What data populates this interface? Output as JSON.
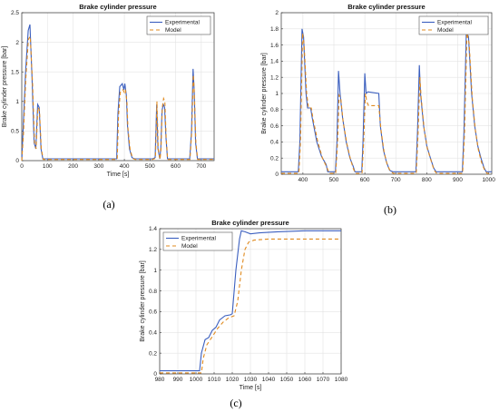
{
  "captions": [
    "(a)",
    "(b)",
    "(c)"
  ],
  "chart_data": [
    {
      "type": "line",
      "title": "Brake cylinder pressure",
      "xlabel": "Time [s]",
      "ylabel": "Brake cylinder pressure [bar]",
      "xlim": [
        0,
        750
      ],
      "ylim": [
        0,
        2.5
      ],
      "xticks": [
        "0",
        "100",
        "200",
        "300",
        "400",
        "500",
        "600",
        "700"
      ],
      "yticks": [
        "0",
        "0.5",
        "1",
        "1.5",
        "2",
        "2.5"
      ],
      "grid": true,
      "legend_position": "top-right",
      "series": [
        {
          "name": "Experimental",
          "color": "#3b5fbf",
          "dash": "",
          "points": [
            [
              0,
              0
            ],
            [
              5,
              0.5
            ],
            [
              15,
              1.5
            ],
            [
              25,
              2.2
            ],
            [
              32,
              2.3
            ],
            [
              40,
              1.4
            ],
            [
              48,
              0.3
            ],
            [
              55,
              0.2
            ],
            [
              62,
              0.95
            ],
            [
              68,
              0.9
            ],
            [
              75,
              0.2
            ],
            [
              82,
              0.03
            ],
            [
              100,
              0.03
            ],
            [
              370,
              0.03
            ],
            [
              375,
              0.8
            ],
            [
              382,
              1.25
            ],
            [
              392,
              1.3
            ],
            [
              398,
              1.2
            ],
            [
              402,
              1.3
            ],
            [
              408,
              1.1
            ],
            [
              412,
              0.6
            ],
            [
              420,
              0.2
            ],
            [
              430,
              0.05
            ],
            [
              440,
              0.03
            ],
            [
              510,
              0.03
            ],
            [
              520,
              0.05
            ],
            [
              526,
              0.95
            ],
            [
              531,
              0.2
            ],
            [
              538,
              0.03
            ],
            [
              542,
              0.2
            ],
            [
              547,
              0.85
            ],
            [
              552,
              0.95
            ],
            [
              557,
              0.9
            ],
            [
              562,
              0.4
            ],
            [
              568,
              0.03
            ],
            [
              655,
              0.03
            ],
            [
              662,
              0.5
            ],
            [
              668,
              1.55
            ],
            [
              672,
              1.2
            ],
            [
              678,
              0.3
            ],
            [
              685,
              0.03
            ],
            [
              750,
              0.03
            ]
          ]
        },
        {
          "name": "Model",
          "color": "#e08a1e",
          "dash": "4,3",
          "points": [
            [
              0,
              0
            ],
            [
              6,
              0.4
            ],
            [
              16,
              1.4
            ],
            [
              26,
              2.05
            ],
            [
              33,
              2.1
            ],
            [
              42,
              1.3
            ],
            [
              50,
              0.3
            ],
            [
              56,
              0.2
            ],
            [
              63,
              0.9
            ],
            [
              69,
              0.85
            ],
            [
              76,
              0.2
            ],
            [
              84,
              0.02
            ],
            [
              100,
              0.02
            ],
            [
              372,
              0.02
            ],
            [
              377,
              0.75
            ],
            [
              384,
              1.15
            ],
            [
              394,
              1.2
            ],
            [
              400,
              1.15
            ],
            [
              404,
              1.2
            ],
            [
              410,
              1.0
            ],
            [
              414,
              0.55
            ],
            [
              422,
              0.2
            ],
            [
              432,
              0.04
            ],
            [
              442,
              0.02
            ],
            [
              510,
              0.02
            ],
            [
              521,
              0.04
            ],
            [
              527,
              1.0
            ],
            [
              532,
              0.2
            ],
            [
              539,
              0.02
            ],
            [
              543,
              0.2
            ],
            [
              548,
              0.9
            ],
            [
              553,
              1.05
            ],
            [
              558,
              1.0
            ],
            [
              563,
              0.4
            ],
            [
              569,
              0.02
            ],
            [
              656,
              0.02
            ],
            [
              663,
              0.5
            ],
            [
              669,
              1.45
            ],
            [
              673,
              1.15
            ],
            [
              679,
              0.3
            ],
            [
              686,
              0.02
            ],
            [
              750,
              0.02
            ]
          ]
        }
      ]
    },
    {
      "type": "line",
      "title": "Brake cylinder pressure",
      "xlabel": "",
      "ylabel": "Brake cylinder pressure [bar]",
      "xlim": [
        330,
        1010
      ],
      "ylim": [
        0,
        2
      ],
      "xticks": [
        "400",
        "500",
        "600",
        "700",
        "800",
        "900",
        "1000"
      ],
      "yticks": [
        "0",
        "0.2",
        "0.4",
        "0.6",
        "0.8",
        "1",
        "1.2",
        "1.4",
        "1.6",
        "1.8",
        "2"
      ],
      "grid": true,
      "legend_position": "top-right",
      "series": [
        {
          "name": "Experimental",
          "color": "#3b5fbf",
          "dash": "",
          "points": [
            [
              330,
              0.03
            ],
            [
              385,
              0.03
            ],
            [
              390,
              0.4
            ],
            [
              397,
              1.8
            ],
            [
              402,
              1.7
            ],
            [
              410,
              1.0
            ],
            [
              415,
              0.82
            ],
            [
              425,
              0.82
            ],
            [
              430,
              0.7
            ],
            [
              445,
              0.4
            ],
            [
              460,
              0.22
            ],
            [
              475,
              0.12
            ],
            [
              480,
              0.03
            ],
            [
              505,
              0.03
            ],
            [
              510,
              0.4
            ],
            [
              515,
              1.28
            ],
            [
              520,
              1.0
            ],
            [
              528,
              0.7
            ],
            [
              540,
              0.4
            ],
            [
              552,
              0.2
            ],
            [
              562,
              0.1
            ],
            [
              568,
              0.03
            ],
            [
              590,
              0.03
            ],
            [
              594,
              0.4
            ],
            [
              600,
              1.25
            ],
            [
              604,
              1.0
            ],
            [
              610,
              1.02
            ],
            [
              645,
              1.0
            ],
            [
              650,
              0.6
            ],
            [
              660,
              0.3
            ],
            [
              670,
              0.15
            ],
            [
              680,
              0.05
            ],
            [
              690,
              0.03
            ],
            [
              765,
              0.03
            ],
            [
              770,
              0.5
            ],
            [
              776,
              1.35
            ],
            [
              780,
              1.0
            ],
            [
              790,
              0.6
            ],
            [
              800,
              0.35
            ],
            [
              812,
              0.2
            ],
            [
              822,
              0.08
            ],
            [
              830,
              0.03
            ],
            [
              915,
              0.03
            ],
            [
              920,
              0.5
            ],
            [
              928,
              1.77
            ],
            [
              935,
              1.7
            ],
            [
              945,
              1.0
            ],
            [
              955,
              0.6
            ],
            [
              965,
              0.35
            ],
            [
              975,
              0.2
            ],
            [
              985,
              0.08
            ],
            [
              992,
              0.03
            ],
            [
              1010,
              0.03
            ]
          ]
        },
        {
          "name": "Model",
          "color": "#e08a1e",
          "dash": "4,3",
          "points": [
            [
              330,
              0.01
            ],
            [
              387,
              0.01
            ],
            [
              392,
              0.4
            ],
            [
              399,
              1.75
            ],
            [
              404,
              1.6
            ],
            [
              412,
              1.0
            ],
            [
              418,
              0.82
            ],
            [
              427,
              0.82
            ],
            [
              433,
              0.68
            ],
            [
              448,
              0.4
            ],
            [
              463,
              0.2
            ],
            [
              478,
              0.08
            ],
            [
              485,
              0.01
            ],
            [
              506,
              0.01
            ],
            [
              512,
              0.4
            ],
            [
              517,
              0.98
            ],
            [
              522,
              0.95
            ],
            [
              530,
              0.65
            ],
            [
              542,
              0.38
            ],
            [
              554,
              0.18
            ],
            [
              564,
              0.06
            ],
            [
              570,
              0.01
            ],
            [
              591,
              0.01
            ],
            [
              596,
              0.4
            ],
            [
              602,
              1.0
            ],
            [
              606,
              0.9
            ],
            [
              612,
              0.85
            ],
            [
              645,
              0.85
            ],
            [
              652,
              0.55
            ],
            [
              662,
              0.28
            ],
            [
              672,
              0.12
            ],
            [
              682,
              0.04
            ],
            [
              692,
              0.01
            ],
            [
              766,
              0.01
            ],
            [
              772,
              0.5
            ],
            [
              778,
              1.2
            ],
            [
              782,
              0.95
            ],
            [
              792,
              0.55
            ],
            [
              802,
              0.32
            ],
            [
              814,
              0.17
            ],
            [
              824,
              0.05
            ],
            [
              832,
              0.01
            ],
            [
              916,
              0.01
            ],
            [
              922,
              0.5
            ],
            [
              930,
              1.75
            ],
            [
              937,
              1.62
            ],
            [
              947,
              0.95
            ],
            [
              957,
              0.55
            ],
            [
              967,
              0.3
            ],
            [
              977,
              0.15
            ],
            [
              987,
              0.05
            ],
            [
              995,
              0.01
            ],
            [
              1010,
              0.01
            ]
          ]
        }
      ]
    },
    {
      "type": "line",
      "title": "Brake cylinder pressure",
      "xlabel": "Time [s]",
      "ylabel": "Brake cylinder pressure [bar]",
      "xlim": [
        980,
        1080
      ],
      "ylim": [
        0,
        1.4
      ],
      "xticks": [
        "980",
        "990",
        "1000",
        "1010",
        "1020",
        "1030",
        "1040",
        "1050",
        "1060",
        "1070",
        "1080"
      ],
      "yticks": [
        "0",
        "0.2",
        "0.4",
        "0.6",
        "0.8",
        "1",
        "1.2",
        "1.4"
      ],
      "grid": true,
      "legend_position": "top-left",
      "series": [
        {
          "name": "Experimental",
          "color": "#3b5fbf",
          "dash": "",
          "points": [
            [
              980,
              0.03
            ],
            [
              1002,
              0.03
            ],
            [
              1003,
              0.2
            ],
            [
              1005,
              0.33
            ],
            [
              1007,
              0.35
            ],
            [
              1009,
              0.42
            ],
            [
              1011,
              0.45
            ],
            [
              1013,
              0.52
            ],
            [
              1016,
              0.56
            ],
            [
              1019,
              0.57
            ],
            [
              1020,
              0.58
            ],
            [
              1022,
              1.0
            ],
            [
              1024,
              1.3
            ],
            [
              1025,
              1.38
            ],
            [
              1027,
              1.37
            ],
            [
              1030,
              1.35
            ],
            [
              1035,
              1.36
            ],
            [
              1045,
              1.37
            ],
            [
              1060,
              1.38
            ],
            [
              1080,
              1.38
            ]
          ]
        },
        {
          "name": "Model",
          "color": "#e08a1e",
          "dash": "4,3",
          "points": [
            [
              980,
              0.01
            ],
            [
              1003,
              0.01
            ],
            [
              1004,
              0.15
            ],
            [
              1006,
              0.28
            ],
            [
              1009,
              0.36
            ],
            [
              1012,
              0.44
            ],
            [
              1015,
              0.5
            ],
            [
              1018,
              0.54
            ],
            [
              1021,
              0.56
            ],
            [
              1023,
              0.7
            ],
            [
              1025,
              1.0
            ],
            [
              1027,
              1.2
            ],
            [
              1029,
              1.27
            ],
            [
              1032,
              1.29
            ],
            [
              1040,
              1.3
            ],
            [
              1060,
              1.3
            ],
            [
              1080,
              1.3
            ]
          ]
        }
      ]
    }
  ]
}
